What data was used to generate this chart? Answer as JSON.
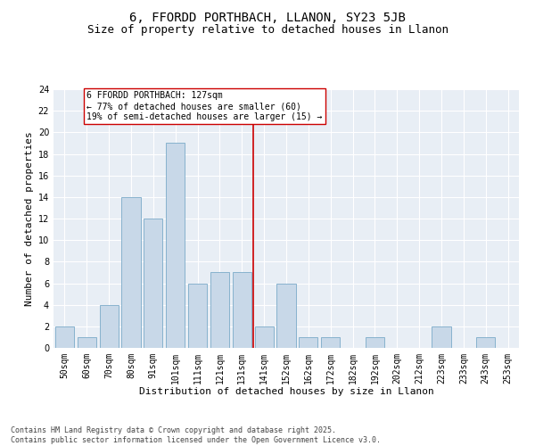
{
  "title": "6, FFORDD PORTHBACH, LLANON, SY23 5JB",
  "subtitle": "Size of property relative to detached houses in Llanon",
  "xlabel": "Distribution of detached houses by size in Llanon",
  "ylabel": "Number of detached properties",
  "categories": [
    "50sqm",
    "60sqm",
    "70sqm",
    "80sqm",
    "91sqm",
    "101sqm",
    "111sqm",
    "121sqm",
    "131sqm",
    "141sqm",
    "152sqm",
    "162sqm",
    "172sqm",
    "182sqm",
    "192sqm",
    "202sqm",
    "212sqm",
    "223sqm",
    "233sqm",
    "243sqm",
    "253sqm"
  ],
  "values": [
    2,
    1,
    4,
    14,
    12,
    19,
    6,
    7,
    7,
    2,
    6,
    1,
    1,
    0,
    1,
    0,
    0,
    2,
    0,
    1,
    0
  ],
  "bar_color": "#c8d8e8",
  "bar_edge_color": "#7aaac8",
  "vline_x": 8.5,
  "vline_color": "#cc0000",
  "annotation_text": "6 FFORDD PORTHBACH: 127sqm\n← 77% of detached houses are smaller (60)\n19% of semi-detached houses are larger (15) →",
  "annotation_box_color": "#ffffff",
  "annotation_box_edge_color": "#cc0000",
  "ylim": [
    0,
    24
  ],
  "yticks": [
    0,
    2,
    4,
    6,
    8,
    10,
    12,
    14,
    16,
    18,
    20,
    22,
    24
  ],
  "fig_background_color": "#ffffff",
  "plot_background_color": "#e8eef5",
  "footer_text": "Contains HM Land Registry data © Crown copyright and database right 2025.\nContains public sector information licensed under the Open Government Licence v3.0.",
  "title_fontsize": 10,
  "subtitle_fontsize": 9,
  "xlabel_fontsize": 8,
  "ylabel_fontsize": 8,
  "tick_fontsize": 7,
  "annotation_fontsize": 7,
  "footer_fontsize": 6
}
